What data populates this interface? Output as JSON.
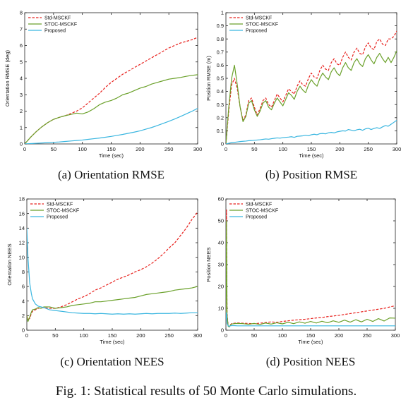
{
  "caption": "Fig. 1: Statistical results of 50 Monte Carlo simulations.",
  "legend_entries": [
    "Std-MSCKF",
    "STOC-MSCKF",
    "Proposed"
  ],
  "colors": {
    "std": "#e8211d",
    "stoc": "#6ba12b",
    "proposed": "#3ab6e0"
  },
  "chart_data": [
    {
      "id": "a",
      "type": "line",
      "subcaption": "(a) Orientation RMSE",
      "xlabel": "Time (sec)",
      "ylabel": "Orientation RMSE (deg)",
      "xlim": [
        0,
        300
      ],
      "ylim": [
        0,
        8
      ],
      "xticks": [
        0,
        50,
        100,
        150,
        200,
        250,
        300
      ],
      "yticks": [
        0,
        1,
        2,
        3,
        4,
        5,
        6,
        7,
        8
      ],
      "legend": "top-left",
      "grid": false,
      "x": [
        0,
        10,
        20,
        30,
        40,
        50,
        60,
        70,
        80,
        90,
        100,
        110,
        120,
        130,
        140,
        150,
        160,
        170,
        180,
        190,
        200,
        210,
        220,
        230,
        240,
        250,
        260,
        270,
        280,
        290,
        300
      ],
      "series": [
        {
          "name": "Std-MSCKF",
          "style": "dashed",
          "values": [
            0,
            0.4,
            0.75,
            1.05,
            1.3,
            1.5,
            1.62,
            1.72,
            1.85,
            2.0,
            2.2,
            2.5,
            2.8,
            3.1,
            3.45,
            3.75,
            4.0,
            4.25,
            4.45,
            4.65,
            4.85,
            5.05,
            5.25,
            5.45,
            5.65,
            5.85,
            6.0,
            6.15,
            6.25,
            6.35,
            6.5
          ]
        },
        {
          "name": "STOC-MSCKF",
          "style": "solid",
          "values": [
            0,
            0.4,
            0.75,
            1.05,
            1.3,
            1.5,
            1.62,
            1.72,
            1.8,
            1.88,
            1.83,
            1.95,
            2.15,
            2.4,
            2.55,
            2.65,
            2.8,
            3.0,
            3.1,
            3.25,
            3.4,
            3.5,
            3.65,
            3.75,
            3.85,
            3.95,
            4.0,
            4.05,
            4.12,
            4.18,
            4.22
          ]
        },
        {
          "name": "Proposed",
          "style": "solid",
          "values": [
            0,
            0.02,
            0.04,
            0.06,
            0.08,
            0.1,
            0.12,
            0.15,
            0.18,
            0.21,
            0.24,
            0.28,
            0.32,
            0.36,
            0.41,
            0.46,
            0.52,
            0.58,
            0.65,
            0.72,
            0.8,
            0.9,
            1.0,
            1.12,
            1.25,
            1.38,
            1.52,
            1.67,
            1.83,
            1.99,
            2.17
          ]
        }
      ]
    },
    {
      "id": "b",
      "type": "line",
      "subcaption": "(b) Position RMSE",
      "xlabel": "Time (sec)",
      "ylabel": "Position RMSE (m)",
      "xlim": [
        0,
        300
      ],
      "ylim": [
        0,
        1
      ],
      "xticks": [
        0,
        50,
        100,
        150,
        200,
        250,
        300
      ],
      "yticks": [
        0,
        0.1,
        0.2,
        0.3,
        0.4,
        0.5,
        0.6,
        0.7,
        0.8,
        0.9,
        1
      ],
      "legend": "top-left",
      "grid": false,
      "x": [
        0,
        5,
        10,
        15,
        20,
        25,
        30,
        35,
        40,
        45,
        50,
        55,
        60,
        65,
        70,
        75,
        80,
        85,
        90,
        95,
        100,
        105,
        110,
        115,
        120,
        125,
        130,
        135,
        140,
        145,
        150,
        155,
        160,
        165,
        170,
        175,
        180,
        185,
        190,
        195,
        200,
        205,
        210,
        215,
        220,
        225,
        230,
        235,
        240,
        245,
        250,
        255,
        260,
        265,
        270,
        275,
        280,
        285,
        290,
        295,
        300
      ],
      "series": [
        {
          "name": "Std-MSCKF",
          "style": "dashed",
          "values": [
            0,
            0.25,
            0.45,
            0.5,
            0.42,
            0.28,
            0.18,
            0.22,
            0.33,
            0.35,
            0.28,
            0.22,
            0.27,
            0.33,
            0.35,
            0.3,
            0.28,
            0.33,
            0.38,
            0.35,
            0.32,
            0.37,
            0.42,
            0.4,
            0.38,
            0.44,
            0.48,
            0.45,
            0.44,
            0.5,
            0.54,
            0.51,
            0.5,
            0.56,
            0.6,
            0.57,
            0.56,
            0.62,
            0.65,
            0.61,
            0.6,
            0.66,
            0.7,
            0.66,
            0.64,
            0.7,
            0.73,
            0.69,
            0.68,
            0.74,
            0.77,
            0.73,
            0.72,
            0.78,
            0.8,
            0.76,
            0.75,
            0.8,
            0.8,
            0.82,
            0.86
          ]
        },
        {
          "name": "STOC-MSCKF",
          "style": "solid",
          "values": [
            0,
            0.28,
            0.5,
            0.6,
            0.45,
            0.28,
            0.17,
            0.21,
            0.31,
            0.33,
            0.26,
            0.21,
            0.25,
            0.31,
            0.33,
            0.28,
            0.26,
            0.31,
            0.35,
            0.32,
            0.29,
            0.34,
            0.39,
            0.37,
            0.34,
            0.4,
            0.44,
            0.41,
            0.39,
            0.45,
            0.49,
            0.46,
            0.44,
            0.5,
            0.54,
            0.51,
            0.49,
            0.55,
            0.58,
            0.54,
            0.52,
            0.58,
            0.62,
            0.58,
            0.56,
            0.62,
            0.65,
            0.61,
            0.59,
            0.65,
            0.68,
            0.64,
            0.61,
            0.66,
            0.69,
            0.65,
            0.62,
            0.66,
            0.62,
            0.66,
            0.71
          ]
        },
        {
          "name": "Proposed",
          "style": "solid",
          "values": [
            0,
            0.005,
            0.01,
            0.012,
            0.015,
            0.018,
            0.02,
            0.022,
            0.025,
            0.026,
            0.028,
            0.03,
            0.032,
            0.035,
            0.038,
            0.036,
            0.04,
            0.043,
            0.046,
            0.044,
            0.048,
            0.05,
            0.052,
            0.055,
            0.05,
            0.058,
            0.06,
            0.062,
            0.066,
            0.062,
            0.07,
            0.074,
            0.07,
            0.078,
            0.08,
            0.077,
            0.085,
            0.088,
            0.084,
            0.092,
            0.096,
            0.1,
            0.098,
            0.11,
            0.105,
            0.1,
            0.108,
            0.112,
            0.104,
            0.115,
            0.12,
            0.11,
            0.118,
            0.124,
            0.118,
            0.13,
            0.14,
            0.135,
            0.15,
            0.165,
            0.18
          ]
        }
      ]
    },
    {
      "id": "c",
      "type": "line",
      "subcaption": "(c) Orientation NEES",
      "xlabel": "Time (sec)",
      "ylabel": "Orientation NEES",
      "xlim": [
        0,
        300
      ],
      "ylim": [
        0,
        18
      ],
      "xticks": [
        0,
        50,
        100,
        150,
        200,
        250,
        300
      ],
      "yticks": [
        0,
        2,
        4,
        6,
        8,
        10,
        12,
        14,
        16,
        18
      ],
      "legend": "top-left",
      "grid": false,
      "x": [
        0,
        2,
        5,
        8,
        10,
        15,
        20,
        25,
        30,
        40,
        50,
        60,
        70,
        80,
        90,
        100,
        110,
        120,
        130,
        140,
        150,
        160,
        170,
        180,
        190,
        200,
        210,
        220,
        230,
        240,
        250,
        260,
        270,
        280,
        290,
        300
      ],
      "series": [
        {
          "name": "Std-MSCKF",
          "style": "dashed",
          "values": [
            2,
            1.5,
            1.6,
            2.3,
            2.6,
            2.8,
            3.0,
            3.1,
            3.1,
            3.0,
            3.0,
            3.2,
            3.5,
            3.9,
            4.3,
            4.6,
            5.0,
            5.5,
            5.8,
            6.2,
            6.6,
            7.0,
            7.3,
            7.6,
            8.0,
            8.3,
            8.7,
            9.2,
            9.8,
            10.5,
            11.3,
            12.0,
            13.0,
            14.0,
            15.2,
            16.2
          ]
        },
        {
          "name": "STOC-MSCKF",
          "style": "solid",
          "values": [
            2,
            1.2,
            1.8,
            2.5,
            2.8,
            2.9,
            3.1,
            3.0,
            3.2,
            3.2,
            3.0,
            3.1,
            3.2,
            3.4,
            3.5,
            3.6,
            3.7,
            3.9,
            3.9,
            4.0,
            4.1,
            4.2,
            4.3,
            4.4,
            4.5,
            4.7,
            4.9,
            5.0,
            5.1,
            5.2,
            5.3,
            5.5,
            5.6,
            5.7,
            5.8,
            6.0
          ]
        },
        {
          "name": "Proposed",
          "style": "solid",
          "values": [
            14,
            10,
            6.5,
            5.0,
            4.3,
            3.6,
            3.3,
            3.2,
            3.1,
            2.8,
            2.7,
            2.6,
            2.5,
            2.4,
            2.35,
            2.3,
            2.3,
            2.25,
            2.3,
            2.25,
            2.2,
            2.25,
            2.2,
            2.25,
            2.2,
            2.25,
            2.3,
            2.25,
            2.3,
            2.3,
            2.3,
            2.35,
            2.3,
            2.35,
            2.4,
            2.4
          ]
        }
      ]
    },
    {
      "id": "d",
      "type": "line",
      "subcaption": "(d) Position NEES",
      "xlabel": "Time (sec)",
      "ylabel": "Position NEES",
      "xlim": [
        0,
        300
      ],
      "ylim": [
        0,
        60
      ],
      "xticks": [
        0,
        50,
        100,
        150,
        200,
        250,
        300
      ],
      "yticks": [
        0,
        10,
        20,
        30,
        40,
        50,
        60
      ],
      "legend": "top-left",
      "grid": false,
      "x": [
        0,
        1,
        2,
        4,
        6,
        8,
        10,
        15,
        20,
        30,
        40,
        50,
        60,
        70,
        80,
        90,
        100,
        110,
        120,
        130,
        140,
        150,
        160,
        170,
        180,
        190,
        200,
        210,
        220,
        230,
        240,
        250,
        260,
        270,
        280,
        290,
        300
      ],
      "series": [
        {
          "name": "Std-MSCKF",
          "style": "dashed",
          "values": [
            5,
            55,
            8,
            2,
            1.5,
            2.5,
            3,
            3.2,
            3.3,
            3.2,
            3.1,
            3.0,
            3.2,
            3.5,
            3.8,
            3.6,
            4.0,
            4.3,
            4.6,
            4.8,
            5.0,
            5.3,
            5.6,
            5.8,
            6.2,
            6.5,
            6.8,
            7.2,
            7.6,
            8.0,
            8.4,
            8.8,
            9.2,
            9.6,
            10.0,
            10.6,
            11.2
          ]
        },
        {
          "name": "STOC-MSCKF",
          "style": "solid",
          "values": [
            5,
            50,
            7,
            1.8,
            1.5,
            2.3,
            2.8,
            3.0,
            3.1,
            3.0,
            2.7,
            3.1,
            2.6,
            3.3,
            2.8,
            3.4,
            2.9,
            3.6,
            3.0,
            3.8,
            3.2,
            4.0,
            3.3,
            4.1,
            3.4,
            4.3,
            3.6,
            4.6,
            3.7,
            4.8,
            3.8,
            5.0,
            4.0,
            5.3,
            4.2,
            5.6,
            5.5
          ]
        },
        {
          "name": "Proposed",
          "style": "solid",
          "values": [
            5,
            8,
            3,
            2,
            1.8,
            2.0,
            2.1,
            2.1,
            2.0,
            2.0,
            2.0,
            2.0,
            2.0,
            2.0,
            2.0,
            2.0,
            2.0,
            2.0,
            2.0,
            2.0,
            2.0,
            2.0,
            2.0,
            2.0,
            2.0,
            2.0,
            2.0,
            2.0,
            2.0,
            2.0,
            2.0,
            2.0,
            2.0,
            2.0,
            2.0,
            2.0,
            2.0
          ]
        }
      ]
    }
  ]
}
